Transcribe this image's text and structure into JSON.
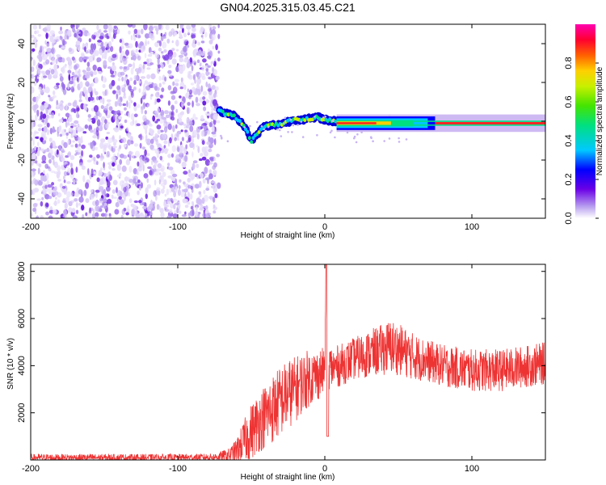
{
  "title": "GN04.2025.315.03.45.C21",
  "chart_data": [
    {
      "type": "heatmap",
      "title": "GN04.2025.315.03.45.C21",
      "xlabel": "Height of straight line (km)",
      "ylabel": "Frequency (Hz)",
      "xlim": [
        -200,
        150
      ],
      "ylim": [
        -50,
        50
      ],
      "xticks": [
        -200,
        -100,
        0,
        100
      ],
      "yticks": [
        -40,
        -20,
        0,
        20,
        40
      ],
      "colorbar": {
        "label": "Normalized spectral amplitude",
        "range": [
          0,
          1
        ],
        "ticks": [
          0.0,
          0.2,
          0.4,
          0.6,
          0.8
        ]
      },
      "features": {
        "noise_region_x": [
          -200,
          -72
        ],
        "chirp_track": [
          [
            -72,
            6
          ],
          [
            -68,
            4
          ],
          [
            -62,
            3
          ],
          [
            -55,
            -2
          ],
          [
            -50,
            -10
          ],
          [
            -46,
            -7
          ],
          [
            -42,
            -3
          ],
          [
            -35,
            -2
          ],
          [
            -28,
            -1
          ],
          [
            -20,
            1
          ],
          [
            -12,
            1
          ],
          [
            -5,
            2
          ],
          [
            0,
            1
          ],
          [
            5,
            0
          ],
          [
            10,
            0
          ]
        ],
        "steady_line": {
          "x": [
            8,
            150
          ],
          "freq": -1
        }
      }
    },
    {
      "type": "line",
      "title": "",
      "xlabel": "Height of straight line (km)",
      "ylabel": "SNR (10 * v/v)",
      "xlim": [
        -200,
        150
      ],
      "ylim": [
        0,
        8300
      ],
      "xticks": [
        -200,
        -100,
        0,
        100
      ],
      "yticks": [
        2000,
        4000,
        6000,
        8000
      ],
      "series": [
        {
          "name": "SNR",
          "color": "#ee3333",
          "x": [
            -200,
            -150,
            -100,
            -75,
            -65,
            -60,
            -55,
            -50,
            -45,
            -40,
            -35,
            -30,
            -25,
            -20,
            -15,
            -10,
            -5,
            0,
            1,
            2,
            3,
            5,
            10,
            20,
            30,
            40,
            45,
            50,
            60,
            70,
            80,
            90,
            100,
            110,
            120,
            130,
            140,
            150
          ],
          "mean": [
            100,
            100,
            100,
            120,
            200,
            400,
            800,
            1200,
            1600,
            1900,
            2200,
            2500,
            2800,
            3000,
            3300,
            3500,
            3600,
            3800,
            8300,
            1000,
            4000,
            3900,
            4000,
            4300,
            4500,
            4700,
            4800,
            4700,
            4400,
            4200,
            4000,
            3900,
            3800,
            3800,
            3800,
            3900,
            4000,
            4100
          ],
          "spread": [
            150,
            150,
            150,
            150,
            300,
            500,
            900,
            1200,
            1300,
            1400,
            1500,
            1500,
            1500,
            1400,
            1300,
            1200,
            1100,
            1000,
            0,
            0,
            1000,
            900,
            900,
            900,
            1000,
            1100,
            1200,
            1100,
            1000,
            900,
            900,
            900,
            900,
            900,
            900,
            900,
            900,
            900
          ]
        }
      ]
    }
  ]
}
